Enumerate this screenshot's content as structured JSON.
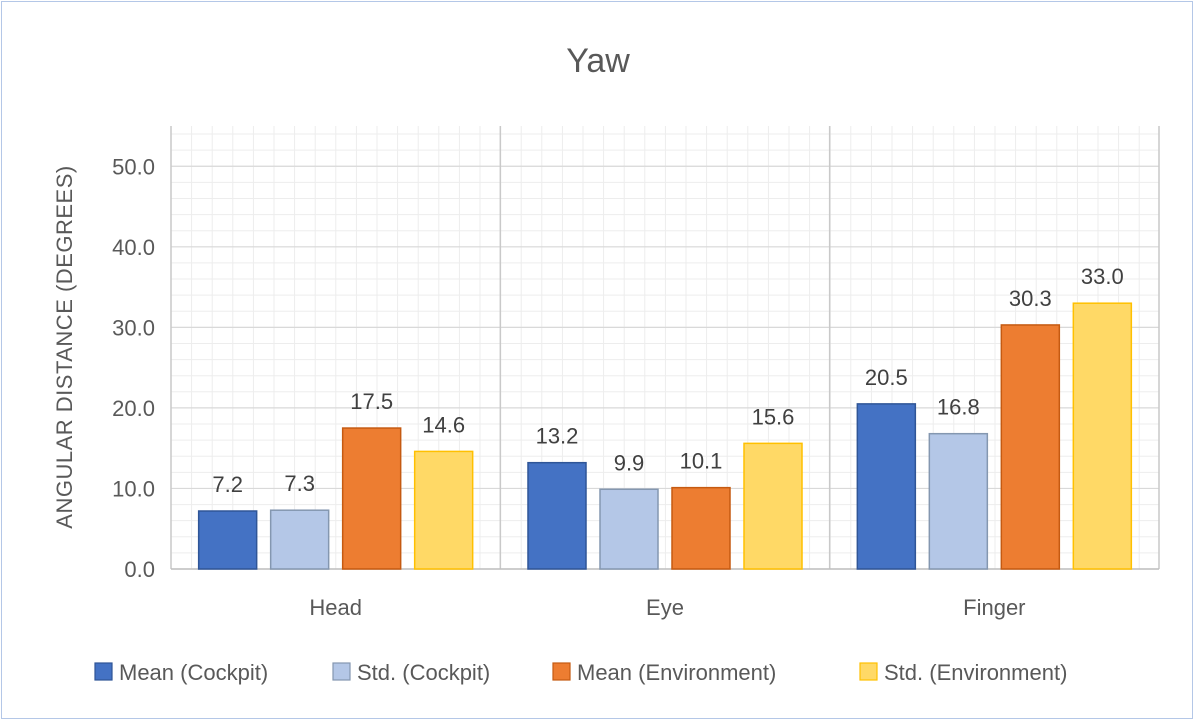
{
  "chart_data": {
    "type": "bar",
    "title": "Yaw",
    "xlabel": "",
    "ylabel": "ANGULAR DISTANCE (DEGREES)",
    "ylim": [
      0,
      55
    ],
    "yticks": [
      "0.0",
      "10.0",
      "20.0",
      "30.0",
      "40.0",
      "50.0"
    ],
    "ytick_values": [
      0,
      10,
      20,
      30,
      40,
      50
    ],
    "categories": [
      "Head",
      "Eye",
      "Finger"
    ],
    "series": [
      {
        "name": "Mean (Cockpit)",
        "values": [
          7.2,
          13.2,
          20.5
        ],
        "labels": [
          "7.2",
          "13.2",
          "20.5"
        ],
        "color": "#4472c4",
        "stroke": "#2f5597"
      },
      {
        "name": "Std. (Cockpit)",
        "values": [
          7.3,
          9.9,
          16.8
        ],
        "labels": [
          "7.3",
          "9.9",
          "16.8"
        ],
        "color": "#b4c7e7",
        "stroke": "#8497b0"
      },
      {
        "name": "Mean (Environment)",
        "values": [
          17.5,
          10.1,
          30.3
        ],
        "labels": [
          "17.5",
          "10.1",
          "30.3"
        ],
        "color": "#ed7d31",
        "stroke": "#c55a11"
      },
      {
        "name": "Std. (Environment)",
        "values": [
          14.6,
          15.6,
          33.0
        ],
        "labels": [
          "14.6",
          "15.6",
          "33.0"
        ],
        "color": "#ffd966",
        "stroke": "#ffc000"
      }
    ],
    "grid": true,
    "legend": "bottom"
  }
}
